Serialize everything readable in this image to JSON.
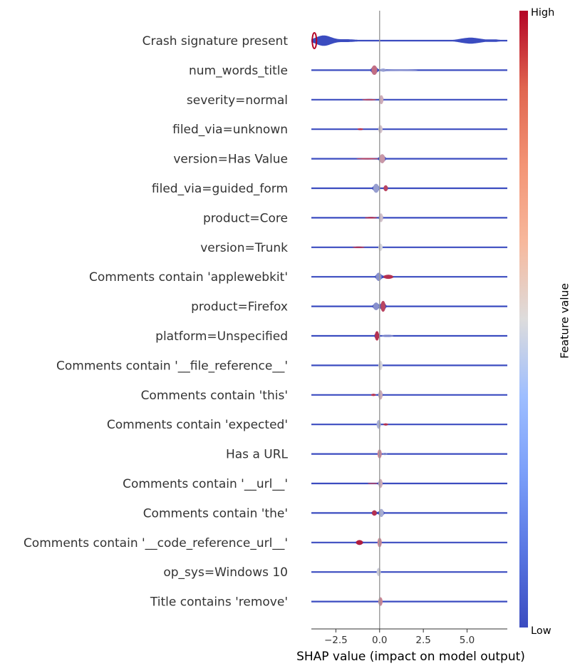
{
  "chart_data": {
    "type": "violin",
    "xlabel": "SHAP value (impact on model output)",
    "xlim": [
      -3.9,
      7.3
    ],
    "xticks": [
      -2.5,
      0.0,
      2.5,
      5.0
    ],
    "xtick_labels": [
      "−2.5",
      "0.0",
      "2.5",
      "5.0"
    ],
    "colorbar": {
      "title": "Feature value",
      "high_label": "High",
      "low_label": "Low",
      "low_color": "#3b4cc0",
      "mid_color": "#dddcdc",
      "high_color": "#b40426"
    },
    "features": [
      {
        "name": "Crash signature present",
        "components": [
          {
            "center": -3.2,
            "spread": 0.45,
            "height": 0.38,
            "color": 0.02
          },
          {
            "center": -1.8,
            "spread": 0.5,
            "height": 0.1,
            "color": 0.05
          },
          {
            "center": 5.2,
            "spread": 0.6,
            "height": 0.22,
            "color": 0.02
          },
          {
            "center": 6.6,
            "spread": 0.3,
            "height": 0.08,
            "color": 0.05
          }
        ],
        "edge": -3.85
      },
      {
        "name": "num_words_title",
        "components": [
          {
            "center": -0.3,
            "spread": 0.12,
            "height": 0.35,
            "color": 0.75
          },
          {
            "center": 0.2,
            "spread": 0.15,
            "height": 0.09,
            "color": 0.3
          },
          {
            "center": 1.2,
            "spread": 0.7,
            "height": 0.04,
            "color": 0.25
          }
        ]
      },
      {
        "name": "severity=normal",
        "components": [
          {
            "center": 0.1,
            "spread": 0.07,
            "height": 0.33,
            "color": 0.6
          },
          {
            "center": -0.6,
            "spread": 0.3,
            "height": 0.05,
            "color": 0.85
          }
        ]
      },
      {
        "name": "filed_via=unknown",
        "components": [
          {
            "center": 0.05,
            "spread": 0.06,
            "height": 0.3,
            "color": 0.55
          },
          {
            "center": -1.1,
            "spread": 0.12,
            "height": 0.07,
            "color": 0.9
          }
        ]
      },
      {
        "name": "version=Has Value",
        "components": [
          {
            "center": 0.15,
            "spread": 0.12,
            "height": 0.33,
            "color": 0.65
          },
          {
            "center": -0.7,
            "spread": 0.45,
            "height": 0.05,
            "color": 0.85
          }
        ]
      },
      {
        "name": "filed_via=guided_form",
        "components": [
          {
            "center": -0.2,
            "spread": 0.12,
            "height": 0.33,
            "color": 0.3
          },
          {
            "center": 0.35,
            "spread": 0.08,
            "height": 0.22,
            "color": 0.85
          }
        ]
      },
      {
        "name": "product=Core",
        "components": [
          {
            "center": 0.08,
            "spread": 0.07,
            "height": 0.32,
            "color": 0.55
          },
          {
            "center": -0.5,
            "spread": 0.25,
            "height": 0.06,
            "color": 0.9
          }
        ]
      },
      {
        "name": "version=Trunk",
        "components": [
          {
            "center": 0.05,
            "spread": 0.06,
            "height": 0.28,
            "color": 0.5
          },
          {
            "center": -1.2,
            "spread": 0.25,
            "height": 0.05,
            "color": 0.9
          }
        ]
      },
      {
        "name": "Comments contain 'applewebkit'",
        "components": [
          {
            "center": -0.05,
            "spread": 0.12,
            "height": 0.3,
            "color": 0.25
          },
          {
            "center": 0.5,
            "spread": 0.2,
            "height": 0.15,
            "color": 0.9
          }
        ]
      },
      {
        "name": "product=Firefox",
        "components": [
          {
            "center": -0.2,
            "spread": 0.12,
            "height": 0.28,
            "color": 0.25
          },
          {
            "center": 0.2,
            "spread": 0.1,
            "height": 0.4,
            "color": 0.85
          }
        ]
      },
      {
        "name": "platform=Unspecified",
        "components": [
          {
            "center": -0.15,
            "spread": 0.08,
            "height": 0.35,
            "color": 0.9
          },
          {
            "center": 0.45,
            "spread": 0.25,
            "height": 0.08,
            "color": 0.2
          }
        ]
      },
      {
        "name": "Comments contain '__file_reference__'",
        "components": [
          {
            "center": 0.05,
            "spread": 0.05,
            "height": 0.35,
            "color": 0.5
          }
        ]
      },
      {
        "name": "Comments contain 'this'",
        "components": [
          {
            "center": 0.05,
            "spread": 0.07,
            "height": 0.35,
            "color": 0.6
          },
          {
            "center": -0.35,
            "spread": 0.1,
            "height": 0.08,
            "color": 0.9
          }
        ]
      },
      {
        "name": "Comments contain 'expected'",
        "components": [
          {
            "center": -0.05,
            "spread": 0.05,
            "height": 0.32,
            "color": 0.35
          },
          {
            "center": 0.35,
            "spread": 0.1,
            "height": 0.08,
            "color": 0.9
          }
        ]
      },
      {
        "name": "Has a URL",
        "components": [
          {
            "center": 0.0,
            "spread": 0.05,
            "height": 0.33,
            "color": 0.7
          },
          {
            "center": 0.3,
            "spread": 0.1,
            "height": 0.08,
            "color": 0.2
          }
        ]
      },
      {
        "name": "Comments contain '__url__'",
        "components": [
          {
            "center": 0.05,
            "spread": 0.07,
            "height": 0.33,
            "color": 0.6
          },
          {
            "center": -0.4,
            "spread": 0.2,
            "height": 0.04,
            "color": 0.85
          }
        ]
      },
      {
        "name": "Comments contain 'the'",
        "components": [
          {
            "center": 0.1,
            "spread": 0.1,
            "height": 0.3,
            "color": 0.35
          },
          {
            "center": -0.3,
            "spread": 0.1,
            "height": 0.2,
            "color": 0.9
          }
        ]
      },
      {
        "name": "Comments contain '__code_reference_url__'",
        "components": [
          {
            "center": 0.0,
            "spread": 0.05,
            "height": 0.35,
            "color": 0.7
          },
          {
            "center": -1.15,
            "spread": 0.14,
            "height": 0.18,
            "color": 0.95
          }
        ]
      },
      {
        "name": "op_sys=Windows 10",
        "components": [
          {
            "center": -0.05,
            "spread": 0.05,
            "height": 0.3,
            "color": 0.45
          }
        ]
      },
      {
        "name": "Title contains 'remove'",
        "components": [
          {
            "center": 0.05,
            "spread": 0.05,
            "height": 0.32,
            "color": 0.7
          },
          {
            "center": -1.5,
            "spread": 0.5,
            "height": 0.01,
            "color": 0.1
          }
        ]
      }
    ]
  }
}
